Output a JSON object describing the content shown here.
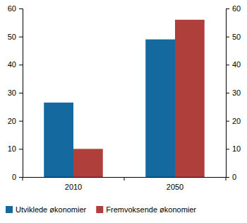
{
  "chart_data": {
    "type": "bar",
    "categories": [
      "2010",
      "2050"
    ],
    "series": [
      {
        "name": "Utviklede økonomier",
        "color": "#14699f",
        "values": [
          26.5,
          49
        ]
      },
      {
        "name": "Fremvoksende økonomier",
        "color": "#ae3f3b",
        "values": [
          10,
          56
        ]
      }
    ],
    "ylim": [
      0,
      60
    ],
    "yticks": [
      0,
      10,
      20,
      30,
      40,
      50,
      60
    ],
    "grid": false,
    "legend": "bottom"
  }
}
